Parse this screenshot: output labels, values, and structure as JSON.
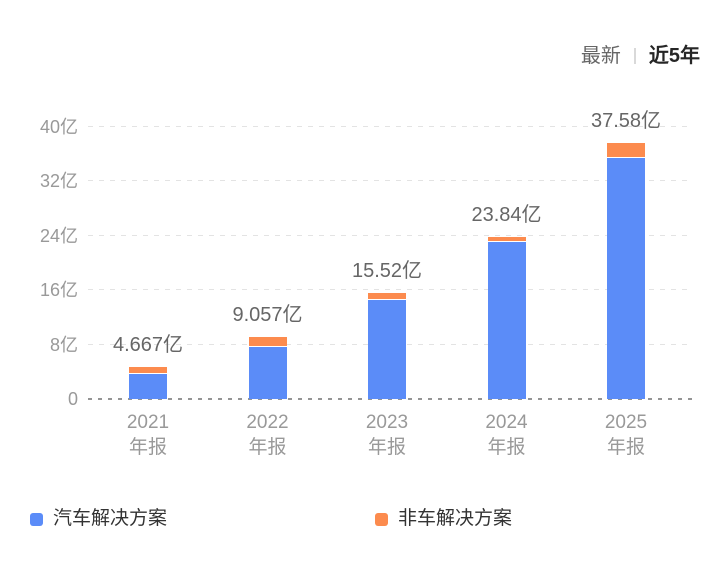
{
  "header": {
    "tabs": [
      {
        "label": "最新",
        "active": false
      },
      {
        "label": "近5年",
        "active": true
      }
    ]
  },
  "chart_data": {
    "type": "bar",
    "stacked": true,
    "categories": [
      "2021年报",
      "2022年报",
      "2023年报",
      "2024年报",
      "2025年报"
    ],
    "category_line1": [
      "2021",
      "2022",
      "2023",
      "2024",
      "2025"
    ],
    "category_line2": [
      "年报",
      "年报",
      "年报",
      "年报",
      "年报"
    ],
    "series": [
      {
        "name": "汽车解决方案",
        "color": "#5B8CF8",
        "values": [
          3.7,
          7.7,
          14.6,
          23.1,
          35.4
        ]
      },
      {
        "name": "非车解决方案",
        "color": "#FC8B4E",
        "values": [
          0.967,
          1.357,
          0.92,
          0.74,
          2.18
        ]
      }
    ],
    "totals": [
      4.667,
      9.057,
      15.52,
      23.84,
      37.58
    ],
    "total_labels": [
      "4.667亿",
      "9.057亿",
      "15.52亿",
      "23.84亿",
      "37.58亿"
    ],
    "yticks": [
      0,
      8,
      16,
      24,
      32,
      40
    ],
    "ytick_labels": [
      "0",
      "8亿",
      "16亿",
      "24亿",
      "32亿",
      "40亿"
    ],
    "ylim": [
      0,
      40
    ],
    "unit": "亿",
    "grid": "horizontal-dashed",
    "legend_position": "bottom",
    "colors": {
      "grid": "#e3e3e3",
      "baseline": "#949494",
      "axis_text": "#999999",
      "value_text": "#666666",
      "legend_text": "#333333"
    }
  }
}
